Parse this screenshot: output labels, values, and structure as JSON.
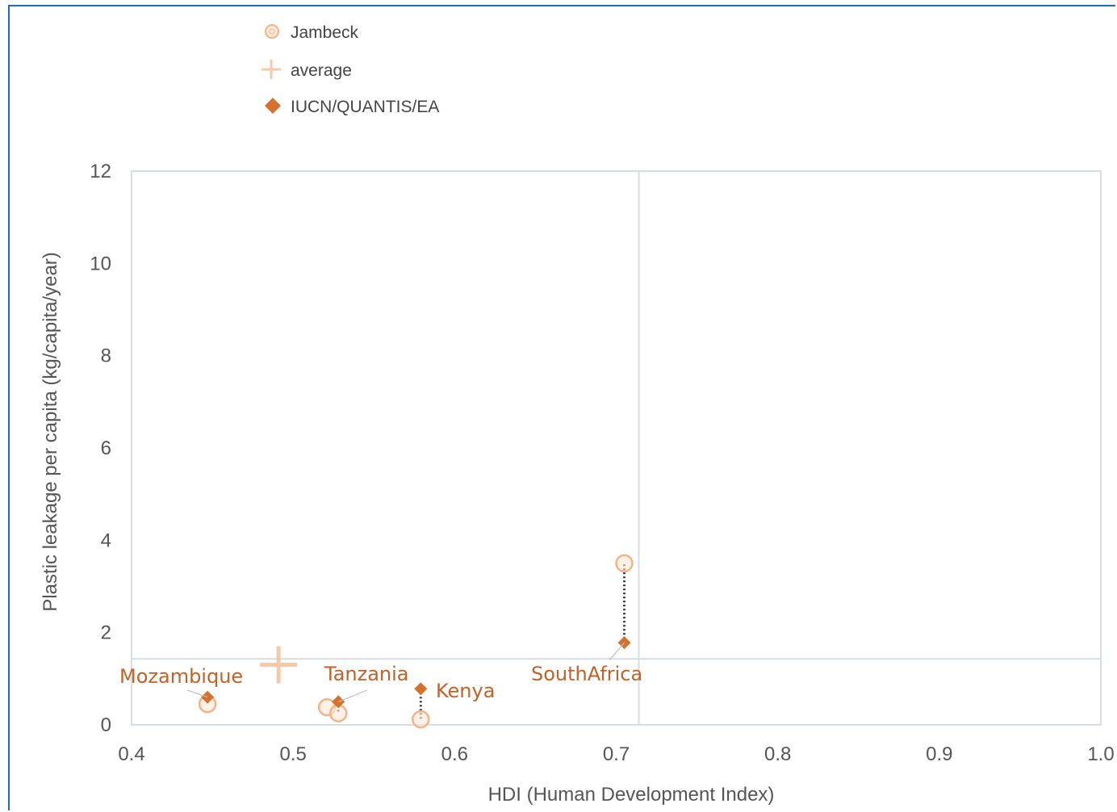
{
  "chart_data": {
    "type": "scatter",
    "xlabel": "HDI (Human Development Index)",
    "ylabel": "Plastic leakage per capita (kg/capita/year)",
    "xlim": [
      0.4,
      1.0
    ],
    "ylim": [
      0,
      12
    ],
    "x_ticks": [
      "0.4",
      "0.5",
      "0.6",
      "0.7",
      "0.8",
      "0.9",
      "1.0"
    ],
    "y_ticks": [
      "0",
      "2",
      "4",
      "6",
      "8",
      "10",
      "12"
    ],
    "legend_position": "top-left",
    "series": [
      {
        "name": "Jambeck",
        "marker": "open-circle",
        "color": "#f0b48a",
        "points": [
          {
            "label": "Mozambique",
            "x": 0.447,
            "y": 0.45
          },
          {
            "label": "Tanzania",
            "x": 0.521,
            "y": 0.38
          },
          {
            "label": "Tanzania",
            "x": 0.528,
            "y": 0.25
          },
          {
            "label": "Kenya",
            "x": 0.579,
            "y": 0.12
          },
          {
            "label": "SouthAfrica",
            "x": 0.705,
            "y": 3.5
          }
        ]
      },
      {
        "name": "average",
        "marker": "plus",
        "color": "#f0b48a",
        "points": [
          {
            "x": 0.491,
            "y": 1.3
          }
        ]
      },
      {
        "name": "IUCN/QUANTIS/EA",
        "marker": "filled-diamond",
        "color": "#d4712f",
        "points": [
          {
            "label": "Mozambique",
            "x": 0.447,
            "y": 0.6
          },
          {
            "label": "Tanzania",
            "x": 0.528,
            "y": 0.5
          },
          {
            "label": "Kenya",
            "x": 0.579,
            "y": 0.78
          },
          {
            "label": "SouthAfrica",
            "x": 0.705,
            "y": 1.78
          }
        ]
      }
    ],
    "reference_lines": {
      "vertical_x": 0.714,
      "horizontal_y": 1.43
    },
    "country_labels": [
      "Mozambique",
      "Tanzania",
      "Kenya",
      "SouthAfrica"
    ]
  },
  "colors": {
    "frame": "#1f6db5",
    "label_text": "#c0622a",
    "grid": "#d8dde2"
  }
}
